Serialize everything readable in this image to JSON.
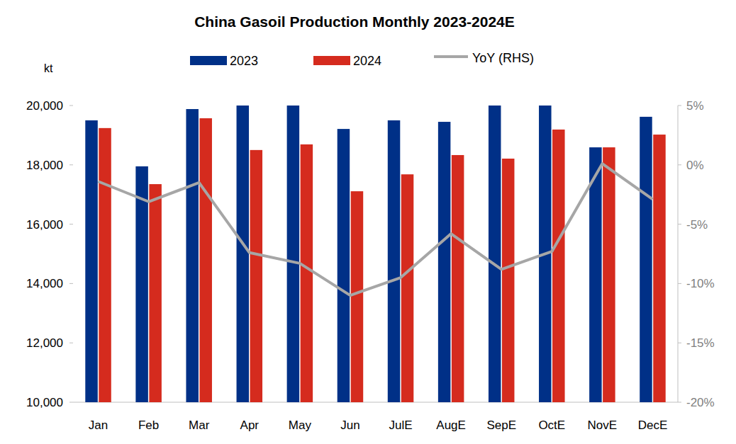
{
  "chart_data": {
    "type": "bar",
    "title": "China Gasoil Production Monthly 2023-2024E",
    "y_label": "kt",
    "categories": [
      "Jan",
      "Feb",
      "Mar",
      "Apr",
      "May",
      "Jun",
      "JulE",
      "AugE",
      "SepE",
      "OctE",
      "NovE",
      "DecE"
    ],
    "series": [
      {
        "name": "2023",
        "color": "#003087",
        "values": [
          19500,
          17950,
          19880,
          20000,
          20000,
          19210,
          19500,
          19450,
          20000,
          20000,
          18590,
          19620
        ]
      },
      {
        "name": "2024",
        "color": "#D52B1E",
        "values": [
          19240,
          17350,
          19570,
          18500,
          18690,
          17110,
          17680,
          18330,
          18210,
          19190,
          18590,
          19020
        ]
      },
      {
        "name": "YoY (RHS)",
        "type": "line",
        "axis": "y2",
        "color": "#A6A6A6",
        "values": [
          -1.4,
          -3.1,
          -1.5,
          -7.4,
          -8.3,
          -11.0,
          -9.5,
          -5.8,
          -8.8,
          -7.3,
          0.1,
          -2.9
        ]
      }
    ],
    "ylim": [
      10000,
      20000
    ],
    "yticks": [
      {
        "value": 10000,
        "label": "10,000"
      },
      {
        "value": 12000,
        "label": "12,000"
      },
      {
        "value": 14000,
        "label": "14,000"
      },
      {
        "value": 16000,
        "label": "16,000"
      },
      {
        "value": 18000,
        "label": "18,000"
      },
      {
        "value": 20000,
        "label": "20,000"
      }
    ],
    "y2lim": [
      -20,
      5
    ],
    "y2ticks": [
      {
        "value": -20,
        "label": "-20%"
      },
      {
        "value": -15,
        "label": "-15%"
      },
      {
        "value": -10,
        "label": "-10%"
      },
      {
        "value": -5,
        "label": "-5%"
      },
      {
        "value": 0,
        "label": "0%"
      },
      {
        "value": 5,
        "label": "5%"
      }
    ],
    "grid": false,
    "legend": "top"
  }
}
